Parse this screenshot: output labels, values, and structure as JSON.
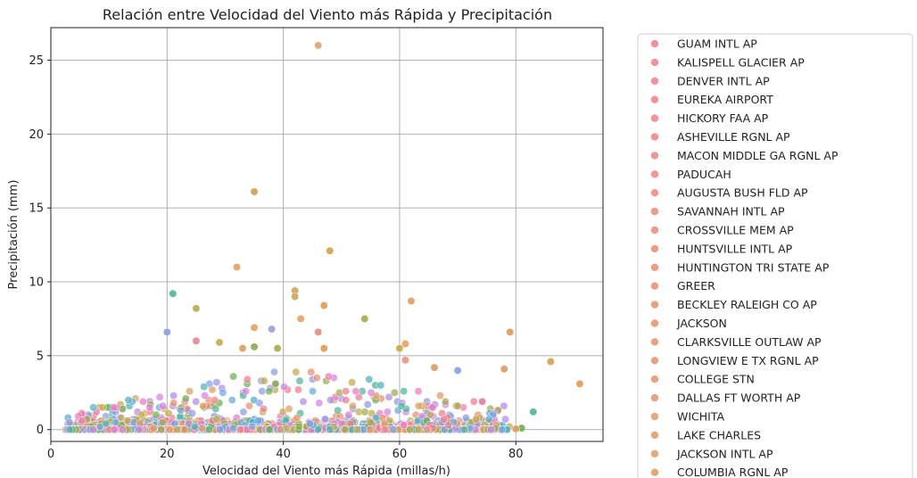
{
  "chart_data": {
    "type": "scatter",
    "title": "Relación entre Velocidad del Viento más Rápida y Precipitación",
    "xlabel": "Velocidad del Viento más Rápida (millas/h)",
    "ylabel": "Precipitación (mm)",
    "xlim": [
      0,
      95
    ],
    "ylim": [
      -0.8,
      27.2
    ],
    "xticks": [
      0,
      20,
      40,
      60,
      80
    ],
    "yticks": [
      0,
      5,
      10,
      15,
      20,
      25
    ],
    "grid": true,
    "legend_position": "outside-right",
    "legend_marker_colors": [
      "#f17c8e",
      "#f37f84",
      "#f2807e",
      "#f18379",
      "#ee8774",
      "#eb8b6f",
      "#e8906a",
      "#e49465",
      "#e09860",
      "#dc9c5c"
    ],
    "highlighted_points": [
      {
        "x": 46,
        "y": 26.0,
        "color": "#dda66a"
      },
      {
        "x": 35,
        "y": 16.1,
        "color": "#d0a048"
      },
      {
        "x": 48,
        "y": 12.1,
        "color": "#d4a04e"
      },
      {
        "x": 32,
        "y": 11.0,
        "color": "#e8a05c"
      },
      {
        "x": 21,
        "y": 9.2,
        "color": "#4cb59a"
      },
      {
        "x": 42,
        "y": 9.4,
        "color": "#d9a05a"
      },
      {
        "x": 42,
        "y": 9.0,
        "color": "#c9a850"
      },
      {
        "x": 62,
        "y": 8.7,
        "color": "#e0a05c"
      },
      {
        "x": 25,
        "y": 8.2,
        "color": "#b8ab50"
      },
      {
        "x": 47,
        "y": 8.4,
        "color": "#e09a5a"
      },
      {
        "x": 54,
        "y": 7.5,
        "color": "#a8ab4a"
      },
      {
        "x": 43,
        "y": 7.5,
        "color": "#e8a060"
      },
      {
        "x": 35,
        "y": 6.9,
        "color": "#e8a060"
      },
      {
        "x": 38,
        "y": 6.8,
        "color": "#9e9ae0"
      },
      {
        "x": 20,
        "y": 6.6,
        "color": "#8c9be8"
      },
      {
        "x": 46,
        "y": 6.6,
        "color": "#e88a8a"
      },
      {
        "x": 79,
        "y": 6.6,
        "color": "#e09a5a"
      },
      {
        "x": 25,
        "y": 6.0,
        "color": "#f08090"
      },
      {
        "x": 29,
        "y": 5.9,
        "color": "#c4a848"
      },
      {
        "x": 61,
        "y": 5.8,
        "color": "#e8a060"
      },
      {
        "x": 35,
        "y": 5.6,
        "color": "#8aab4a"
      },
      {
        "x": 39,
        "y": 5.5,
        "color": "#a8ab4a"
      },
      {
        "x": 33,
        "y": 5.5,
        "color": "#d9a05a"
      },
      {
        "x": 47,
        "y": 5.5,
        "color": "#e09a5a"
      },
      {
        "x": 60,
        "y": 5.5,
        "color": "#c4a848"
      },
      {
        "x": 86,
        "y": 4.6,
        "color": "#d4a04e"
      },
      {
        "x": 61,
        "y": 4.7,
        "color": "#f09080"
      },
      {
        "x": 78,
        "y": 4.1,
        "color": "#e09a5a"
      },
      {
        "x": 70,
        "y": 4.0,
        "color": "#8c9be8"
      },
      {
        "x": 66,
        "y": 4.2,
        "color": "#e09a5a"
      },
      {
        "x": 91,
        "y": 3.1,
        "color": "#e09a5a"
      },
      {
        "x": 83,
        "y": 1.2,
        "color": "#4cb59a"
      },
      {
        "x": 81,
        "y": 0.1,
        "color": "#6cb050"
      },
      {
        "x": 80,
        "y": 0.05,
        "color": "#e09a5a"
      }
    ],
    "cluster_palette": [
      "#f17c8e",
      "#e8906a",
      "#dca05c",
      "#c4a848",
      "#9eab4a",
      "#6cb050",
      "#4cb59a",
      "#4cb0c0",
      "#6aa8e0",
      "#8c9be8",
      "#b08ae8",
      "#d880e0",
      "#ee78c0"
    ]
  },
  "legend": {
    "entries": [
      {
        "label": "GUAM INTL AP",
        "color": "#f17c8e"
      },
      {
        "label": "KALISPELL GLACIER AP",
        "color": "#f27d8b"
      },
      {
        "label": "DENVER INTL AP",
        "color": "#f27e88"
      },
      {
        "label": "EUREKA AIRPORT",
        "color": "#f27f85"
      },
      {
        "label": "HICKORY FAA AP",
        "color": "#f28082"
      },
      {
        "label": "ASHEVILLE RGNL AP",
        "color": "#f1817f"
      },
      {
        "label": "MACON MIDDLE GA RGNL AP",
        "color": "#f1827d"
      },
      {
        "label": "PADUCAH",
        "color": "#f0847a"
      },
      {
        "label": "AUGUSTA BUSH FLD AP",
        "color": "#f08577"
      },
      {
        "label": "SAVANNAH INTL AP",
        "color": "#ef8775"
      },
      {
        "label": "CROSSVILLE MEM AP",
        "color": "#ee8872"
      },
      {
        "label": "HUNTSVILLE INTL AP",
        "color": "#ee8a70"
      },
      {
        "label": "HUNTINGTON TRI STATE AP",
        "color": "#ed8b6e"
      },
      {
        "label": "GREER",
        "color": "#ec8c6c"
      },
      {
        "label": "BECKLEY RALEIGH CO AP",
        "color": "#eb8e6a"
      },
      {
        "label": "JACKSON",
        "color": "#ea8f68"
      },
      {
        "label": "CLARKSVILLE OUTLAW AP",
        "color": "#e99066"
      },
      {
        "label": "LONGVIEW E TX RGNL AP",
        "color": "#e89265"
      },
      {
        "label": "COLLEGE STN",
        "color": "#e79363"
      },
      {
        "label": "DALLAS FT WORTH AP",
        "color": "#e69462"
      },
      {
        "label": "WICHITA",
        "color": "#e59660"
      },
      {
        "label": "LAKE CHARLES",
        "color": "#e4975f"
      },
      {
        "label": "JACKSON INTL AP",
        "color": "#e3985e"
      },
      {
        "label": "COLUMBIA RGNL AP",
        "color": "#e2995d"
      }
    ]
  }
}
